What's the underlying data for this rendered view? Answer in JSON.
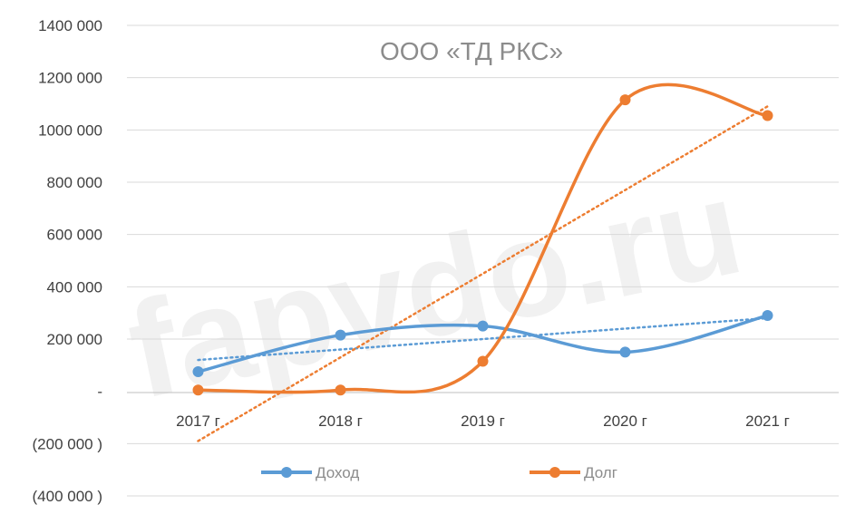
{
  "chart_data": {
    "type": "line",
    "title": "ООО «ТД РКС»",
    "watermark": "fapvdo.ru",
    "categories": [
      "2017 г",
      "2018 г",
      "2019 г",
      "2020 г",
      "2021 г"
    ],
    "y_ticks": [
      {
        "value": 1400000,
        "label": "1400 000"
      },
      {
        "value": 1200000,
        "label": "1200 000"
      },
      {
        "value": 1000000,
        "label": "1000 000"
      },
      {
        "value": 800000,
        "label": "800 000"
      },
      {
        "value": 600000,
        "label": "600 000"
      },
      {
        "value": 400000,
        "label": "400 000"
      },
      {
        "value": 200000,
        "label": "200 000"
      },
      {
        "value": 0,
        "label": "-"
      },
      {
        "value": -200000,
        "label": "(200 000 )"
      },
      {
        "value": -400000,
        "label": "(400 000 )"
      }
    ],
    "ylim": [
      -400000,
      1400000
    ],
    "series": [
      {
        "name": "Доход",
        "color": "#5b9bd5",
        "values": [
          75000,
          215000,
          250000,
          150000,
          290000
        ],
        "trend": {
          "start": 120000,
          "end": 280000
        }
      },
      {
        "name": "Долг",
        "color": "#ed7d31",
        "values": [
          5000,
          5000,
          115000,
          1115000,
          1055000
        ],
        "trend": {
          "start": -190000,
          "end": 1090000
        }
      }
    ],
    "legend_position": "bottom"
  }
}
